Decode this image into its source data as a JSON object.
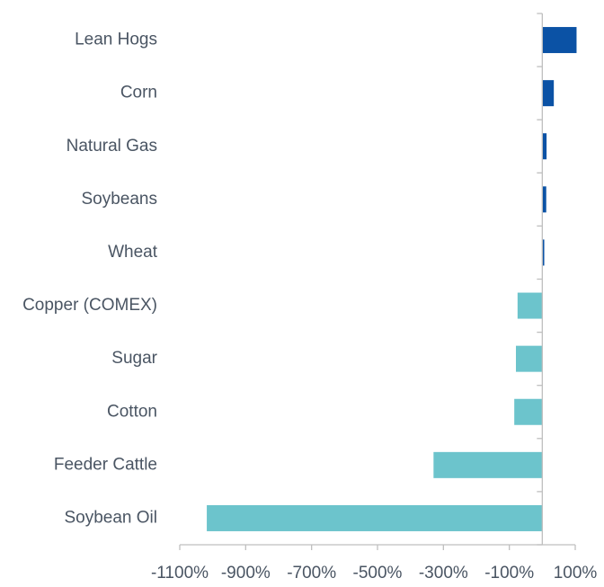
{
  "chart_data": {
    "type": "barh",
    "categories": [
      "Lean Hogs",
      "Corn",
      "Natural Gas",
      "Soybeans",
      "Wheat",
      "Copper (COMEX)",
      "Sugar",
      "Cotton",
      "Feeder Cattle",
      "Soybean Oil"
    ],
    "values": [
      104,
      35,
      13,
      12,
      6,
      -75,
      -80,
      -85,
      -330,
      -1018
    ],
    "colors": [
      "#0b52a5",
      "#0b52a5",
      "#0b52a5",
      "#0b52a5",
      "#0b52a5",
      "#6cc4cc",
      "#6cc4cc",
      "#6cc4cc",
      "#6cc4cc",
      "#6cc4cc"
    ],
    "xlim": [
      -1100,
      100
    ],
    "xticks": [
      {
        "value": -1100,
        "label": "-1100%"
      },
      {
        "value": -900,
        "label": "-900%"
      },
      {
        "value": -700,
        "label": "-700%"
      },
      {
        "value": -500,
        "label": "-500%"
      },
      {
        "value": -300,
        "label": "-300%"
      },
      {
        "value": -100,
        "label": "-100%"
      },
      {
        "value": 100,
        "label": "100%"
      }
    ]
  }
}
